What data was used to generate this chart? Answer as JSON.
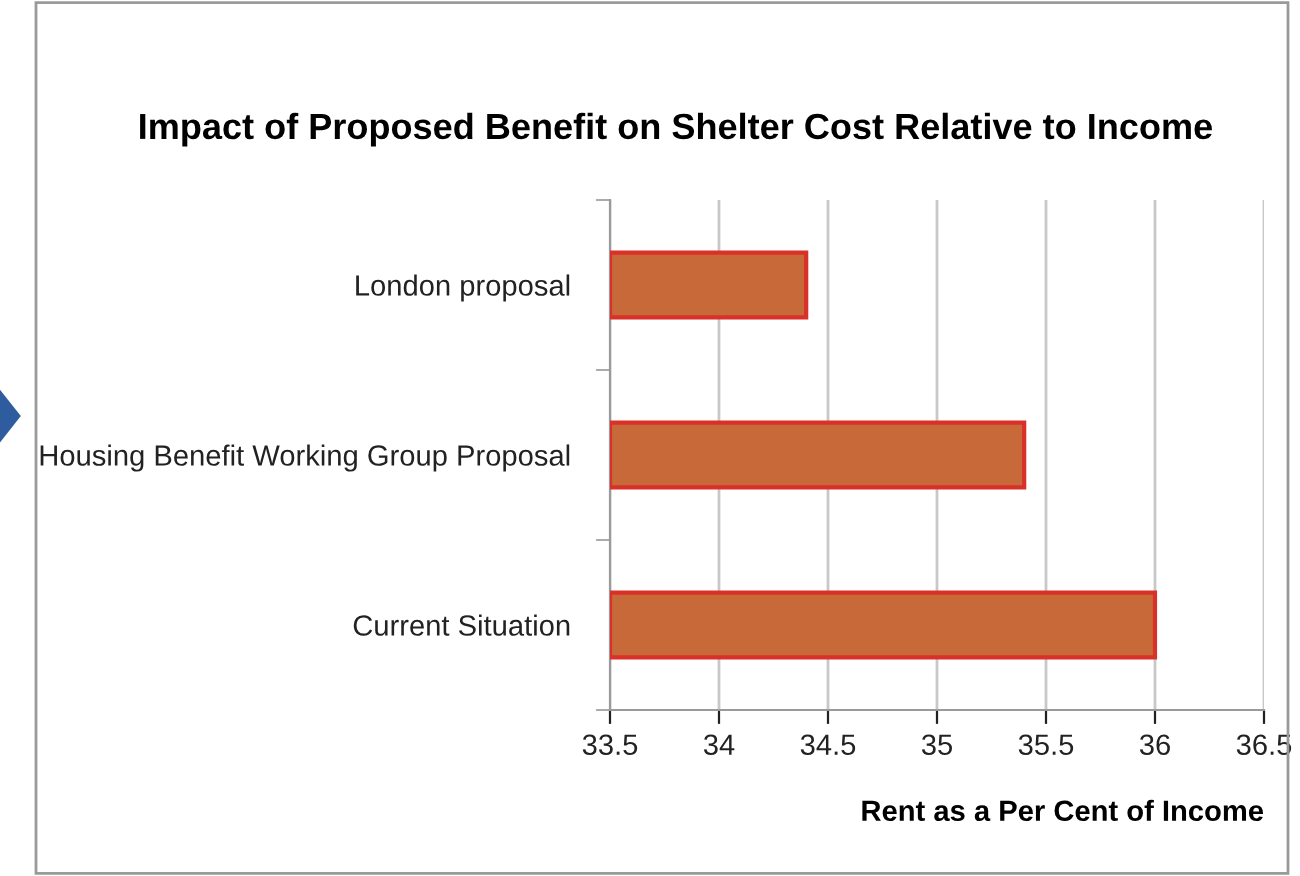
{
  "chart_data": {
    "type": "bar",
    "orientation": "horizontal",
    "title": "Impact of Proposed Benefit on Shelter Cost Relative to Income",
    "xlabel": "Rent as a Per Cent of Income",
    "categories": [
      "London proposal",
      "Housing Benefit Working Group Proposal",
      "Current Situation"
    ],
    "values": [
      34.4,
      35.4,
      36.0
    ],
    "color": "#c8693a",
    "xlim": [
      33.5,
      36.5
    ],
    "xticks": [
      33.5,
      34,
      34.5,
      35,
      35.5,
      36,
      36.5
    ],
    "grid": "x",
    "legend": false
  }
}
